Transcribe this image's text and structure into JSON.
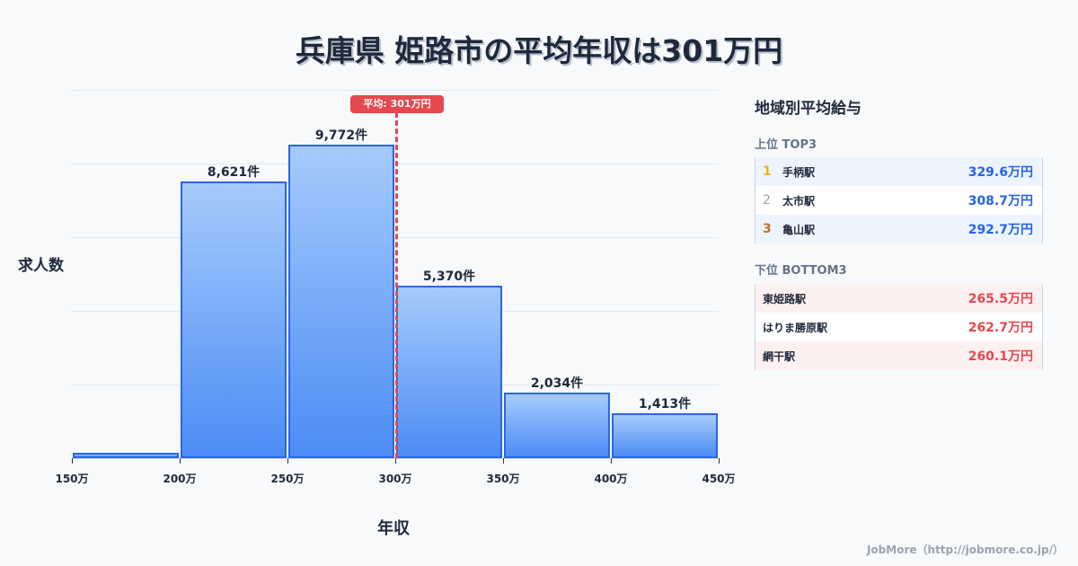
{
  "title": "兵庫県 姫路市の平均年収は301万円",
  "chart_data": {
    "type": "bar",
    "title": "兵庫県 姫路市の平均年収は301万円",
    "xlabel": "年収",
    "ylabel": "求人数",
    "bins": [
      "150万-200万",
      "200万-250万",
      "250万-300万",
      "300万-350万",
      "350万-400万",
      "400万-450万"
    ],
    "x_ticks": [
      "150万",
      "200万",
      "250万",
      "300万",
      "350万",
      "400万",
      "450万"
    ],
    "values": [
      170,
      8621,
      9772,
      5370,
      2034,
      1413
    ],
    "value_labels": [
      "",
      "8,621件",
      "9,772件",
      "5,370件",
      "2,034件",
      "1,413件"
    ],
    "ylim": [
      0,
      11475
    ],
    "grid": true,
    "annotation": {
      "type": "vline",
      "x": 301,
      "label": "平均: 301万円",
      "color": "#e5484d"
    }
  },
  "axis": {
    "xlabel": "年収",
    "ylabel": "求人数"
  },
  "average_badge": "平均: 301万円",
  "side_panel": {
    "title": "地域別平均給与",
    "top": {
      "heading": "上位 TOP3",
      "items": [
        {
          "rank": "1",
          "name": "手柄駅",
          "value": "329.6万円",
          "rank_color": "#eab308"
        },
        {
          "rank": "2",
          "name": "太市駅",
          "value": "308.7万円",
          "rank_color": "#9ca3af"
        },
        {
          "rank": "3",
          "name": "亀山駅",
          "value": "292.7万円",
          "rank_color": "#c2702a"
        }
      ],
      "value_color": "#2563eb"
    },
    "bottom": {
      "heading": "下位 BOTTOM3",
      "items": [
        {
          "name": "東姫路駅",
          "value": "265.5万円"
        },
        {
          "name": "はりま勝原駅",
          "value": "262.7万円"
        },
        {
          "name": "網干駅",
          "value": "260.1万円"
        }
      ],
      "value_color": "#e5484d"
    }
  },
  "footer": "JobMore（http://jobmore.co.jp/）"
}
